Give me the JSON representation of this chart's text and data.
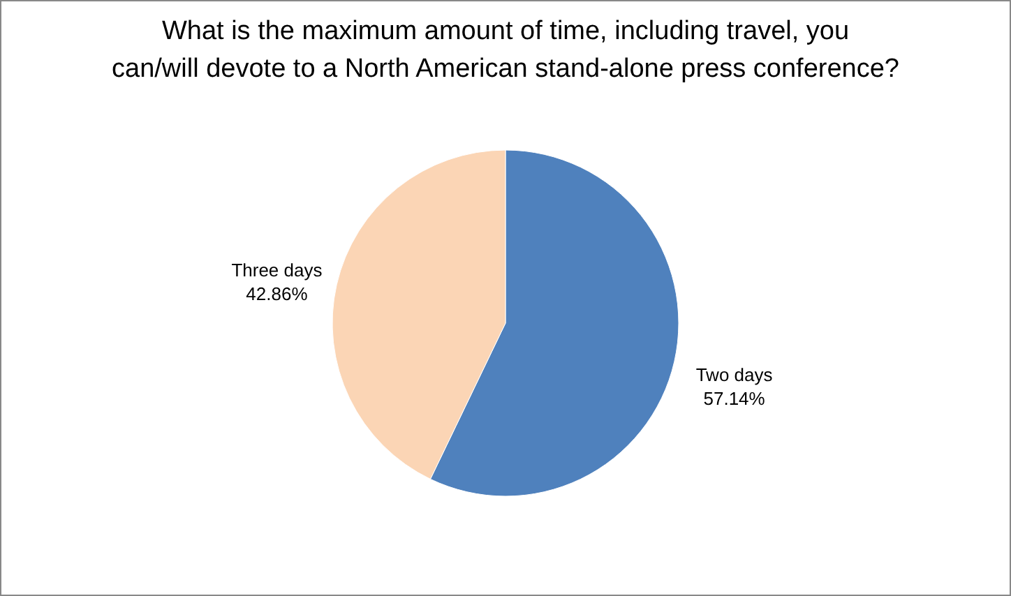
{
  "chart_data": {
    "type": "pie",
    "title": "What is the maximum amount of time, including travel, you can/will devote to a North American stand-alone press conference?",
    "categories": [
      "Two days",
      "Three days"
    ],
    "values": [
      57.14,
      42.86
    ],
    "value_labels": [
      "57.14%",
      "42.86%"
    ],
    "colors": [
      "#4f81bd",
      "#fbd5b5"
    ],
    "legend": false
  }
}
